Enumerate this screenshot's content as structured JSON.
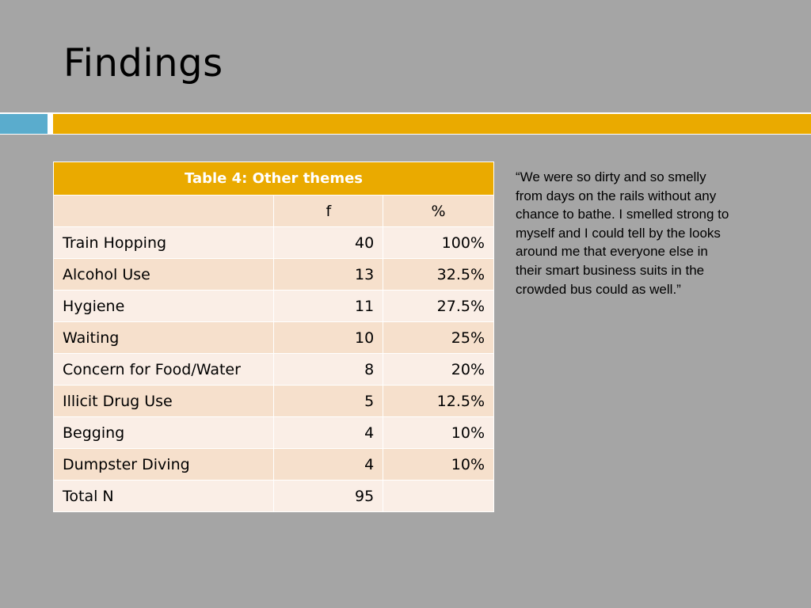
{
  "slide": {
    "title": "Findings",
    "colors": {
      "background": "#a5a5a5",
      "accent_gold": "#eaaa00",
      "accent_blue": "#5aaccd"
    }
  },
  "table": {
    "caption": "Table 4: Other themes",
    "headers": [
      "",
      "f",
      "%"
    ],
    "rows": [
      {
        "theme": "Train Hopping",
        "f": "40",
        "pct": "100%"
      },
      {
        "theme": "Alcohol Use",
        "f": "13",
        "pct": "32.5%"
      },
      {
        "theme": "Hygiene",
        "f": "11",
        "pct": "27.5%"
      },
      {
        "theme": "Waiting",
        "f": "10",
        "pct": "25%"
      },
      {
        "theme": "Concern for Food/Water",
        "f": "8",
        "pct": "20%"
      },
      {
        "theme": "Illicit Drug Use",
        "f": "5",
        "pct": "12.5%"
      },
      {
        "theme": "Begging",
        "f": "4",
        "pct": "10%"
      },
      {
        "theme": "Dumpster Diving",
        "f": "4",
        "pct": "10%"
      },
      {
        "theme": "Total N",
        "f": "95",
        "pct": ""
      }
    ]
  },
  "quote": "“We were so dirty and so smelly from days on the rails without any chance to bathe. I smelled strong to myself and I could tell by the looks around me that everyone else in their smart business suits in the crowded bus could as well.”"
}
